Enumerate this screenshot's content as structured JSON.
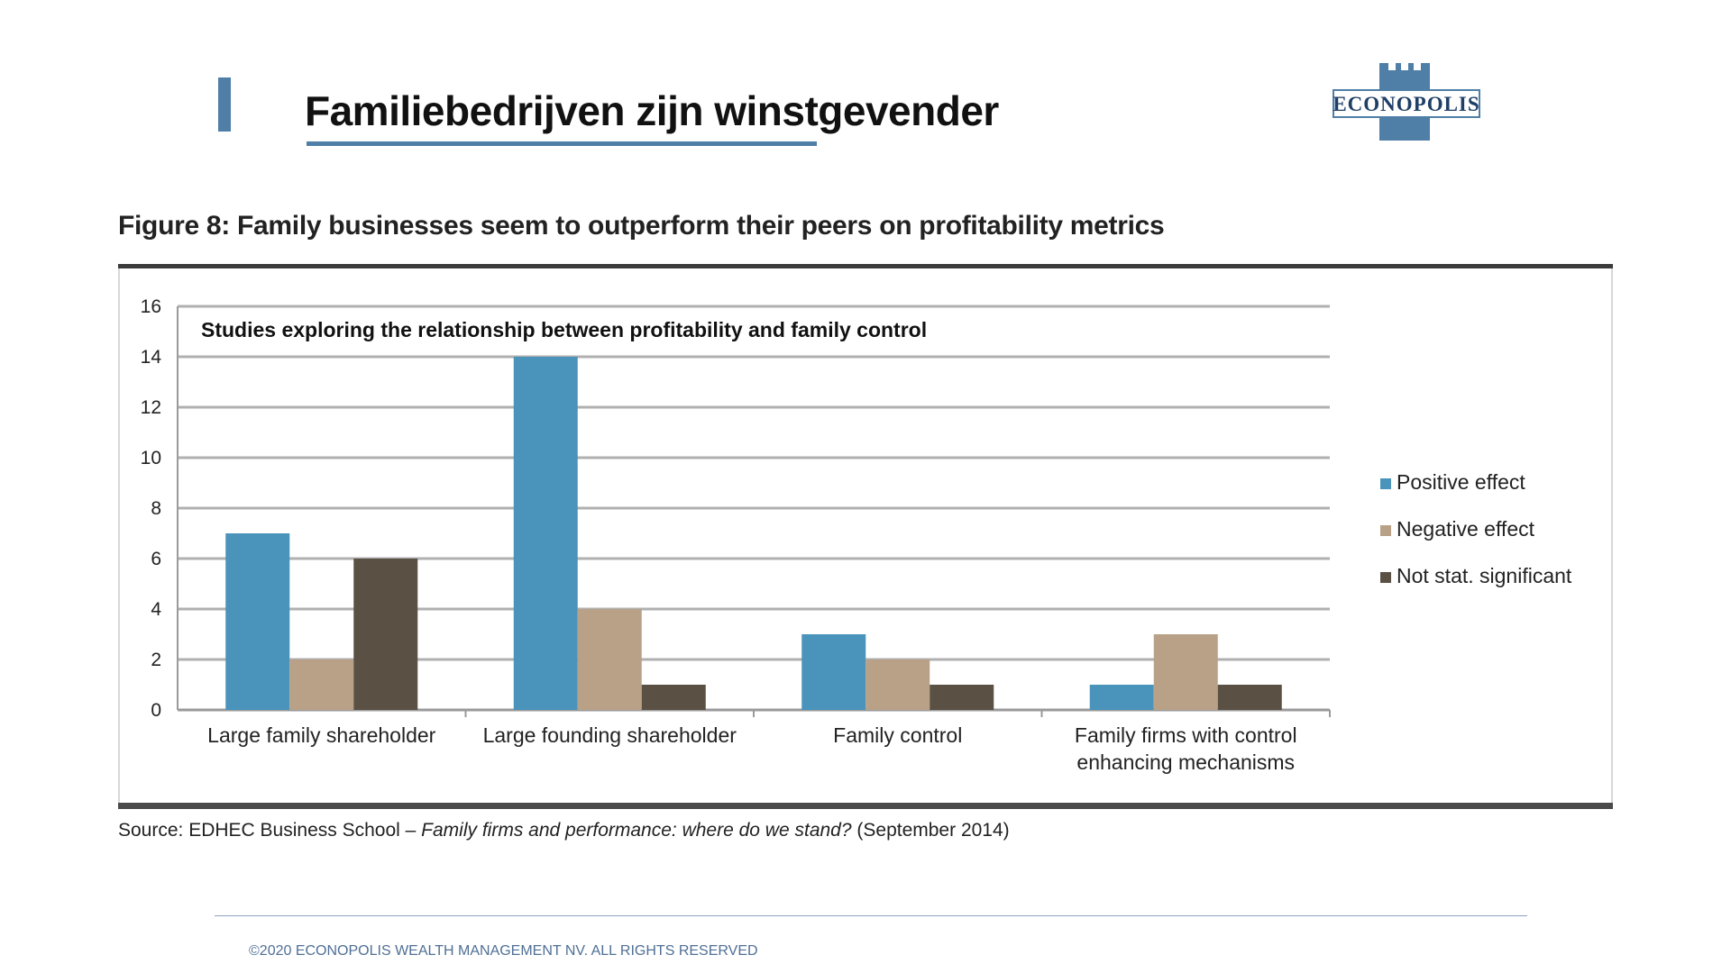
{
  "slide": {
    "title": "Familiebedrijven zijn winstgevender",
    "logo_text": "ECONOPOLIS",
    "copyright": "©2020 ECONOPOLIS WEALTH MANAGEMENT NV. ALL RIGHTS RESERVED"
  },
  "figure": {
    "title": "Figure 8: Family businesses seem to outperform their peers on profitability metrics",
    "source_prefix": "Source:  EDHEC Business School –",
    "source_italic": "Family firms and performance: where do we stand?",
    "source_suffix": "(September 2014)"
  },
  "colors": {
    "accent": "#4f7ea6",
    "positive": "#4a93bb",
    "negative": "#b9a188",
    "not_significant": "#5a5044"
  },
  "chart_data": {
    "type": "bar",
    "title": "Studies exploring the relationship between profitability and family control",
    "categories": [
      [
        "Large family shareholder"
      ],
      [
        "Large founding shareholder"
      ],
      [
        "Family control"
      ],
      [
        "Family firms with control",
        "enhancing mechanisms"
      ]
    ],
    "series": [
      {
        "name": "Positive effect",
        "values": [
          7,
          14,
          3,
          1
        ]
      },
      {
        "name": "Negative effect",
        "values": [
          2,
          4,
          2,
          3
        ]
      },
      {
        "name": "Not stat. significant",
        "values": [
          6,
          1,
          1,
          1
        ]
      }
    ],
    "yticks": [
      "0",
      "2",
      "4",
      "6",
      "8",
      "10",
      "12",
      "14",
      "16"
    ],
    "ylim": [
      0,
      16
    ],
    "grid": true,
    "legend": "right"
  }
}
